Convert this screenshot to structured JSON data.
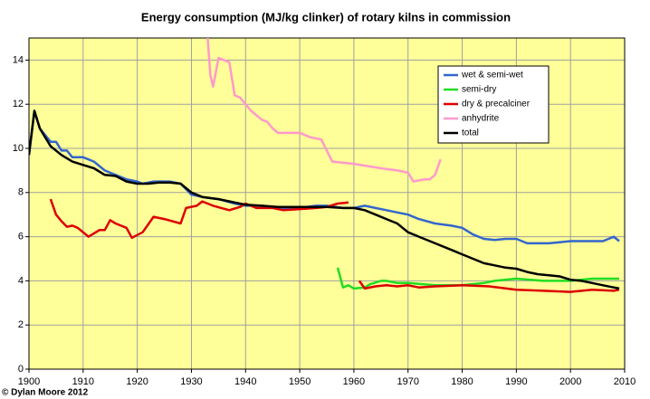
{
  "chart_data": {
    "type": "line",
    "title": "Energy consumption (MJ/kg clinker) of rotary kilns in commission",
    "credit": "© Dylan Moore 2012",
    "xlim": [
      1900,
      2010
    ],
    "xticks": [
      1900,
      1910,
      1920,
      1930,
      1940,
      1950,
      1960,
      1970,
      1980,
      1990,
      2000,
      2010
    ],
    "ylim": [
      0,
      15
    ],
    "yticks": [
      0,
      2,
      4,
      6,
      8,
      10,
      12,
      14
    ],
    "grid": true,
    "legend": "upper right",
    "plot_background": "#ffff99",
    "series": [
      {
        "name": "wet & semi-wet",
        "color": "#3366cc",
        "x": [
          1900,
          1901,
          1902,
          1904,
          1905,
          1906,
          1907,
          1908,
          1910,
          1912,
          1914,
          1916,
          1918,
          1920,
          1921,
          1923,
          1926,
          1928,
          1930,
          1932,
          1935,
          1938,
          1940,
          1943,
          1946,
          1950,
          1953,
          1955,
          1958,
          1960,
          1962,
          1964,
          1966,
          1968,
          1970,
          1972,
          1975,
          1978,
          1980,
          1982,
          1984,
          1986,
          1988,
          1990,
          1992,
          1994,
          1996,
          1998,
          2000,
          2002,
          2004,
          2006,
          2008,
          2009
        ],
        "values": [
          9.7,
          11.7,
          10.9,
          10.3,
          10.3,
          9.9,
          9.9,
          9.6,
          9.6,
          9.4,
          9.0,
          8.8,
          8.6,
          8.5,
          8.4,
          8.5,
          8.5,
          8.4,
          7.9,
          7.8,
          7.7,
          7.5,
          7.4,
          7.4,
          7.3,
          7.3,
          7.4,
          7.4,
          7.3,
          7.3,
          7.4,
          7.3,
          7.2,
          7.1,
          7.0,
          6.8,
          6.6,
          6.5,
          6.4,
          6.1,
          5.9,
          5.85,
          5.9,
          5.9,
          5.7,
          5.7,
          5.7,
          5.75,
          5.8,
          5.8,
          5.8,
          5.8,
          6.0,
          5.8
        ]
      },
      {
        "name": "semi-dry",
        "color": "#22dd22",
        "x": [
          1957,
          1958,
          1959,
          1960,
          1962,
          1963,
          1965,
          1966,
          1968,
          1970,
          1975,
          1980,
          1984,
          1986,
          1990,
          1995,
          2000,
          2004,
          2009
        ],
        "values": [
          4.6,
          3.7,
          3.8,
          3.65,
          3.7,
          3.85,
          4.0,
          4.0,
          3.9,
          3.9,
          3.8,
          3.8,
          3.9,
          4.0,
          4.1,
          4.0,
          4.0,
          4.1,
          4.1
        ]
      },
      {
        "name": "dry & precalciner",
        "color": "#dd0000",
        "x": [
          1904,
          1905,
          1906,
          1907,
          1908,
          1909,
          1911,
          1913,
          1914,
          1915,
          1916,
          1918,
          1919,
          1921,
          1923,
          1925,
          1928,
          1929,
          1931,
          1932,
          1934,
          1937,
          1939,
          1940,
          1942,
          1945,
          1947,
          1950,
          1953,
          1955,
          1957,
          1959,
          1960,
          1961,
          1962,
          1964,
          1966,
          1968,
          1970,
          1972,
          1975,
          1980,
          1985,
          1990,
          1995,
          2000,
          2004,
          2008,
          2009
        ],
        "values": [
          7.7,
          7.0,
          6.7,
          6.45,
          6.5,
          6.4,
          6.0,
          6.3,
          6.3,
          6.75,
          6.6,
          6.4,
          5.95,
          6.2,
          6.9,
          6.8,
          6.6,
          7.3,
          7.4,
          7.6,
          7.4,
          7.2,
          7.35,
          7.5,
          7.3,
          7.3,
          7.2,
          7.25,
          7.3,
          7.35,
          7.5,
          7.55,
          null,
          4.0,
          3.65,
          3.75,
          3.8,
          3.75,
          3.8,
          3.7,
          3.75,
          3.8,
          3.75,
          3.6,
          3.55,
          3.5,
          3.6,
          3.55,
          3.6
        ]
      },
      {
        "name": "anhydrite",
        "color": "#ff99cc",
        "x": [
          1933,
          1933.5,
          1934,
          1935,
          1937,
          1938,
          1939,
          1941,
          1943,
          1944,
          1945,
          1946,
          1950,
          1952,
          1954,
          1955,
          1956,
          1960,
          1965,
          1968,
          1970,
          1971,
          1973,
          1974,
          1975,
          1976
        ],
        "values": [
          15,
          13.3,
          12.8,
          14.1,
          13.9,
          12.4,
          12.3,
          11.7,
          11.3,
          11.2,
          10.9,
          10.7,
          10.7,
          10.5,
          10.4,
          9.9,
          9.4,
          9.3,
          9.1,
          9.0,
          8.9,
          8.5,
          8.6,
          8.6,
          8.8,
          9.5
        ]
      },
      {
        "name": "total",
        "color": "#000000",
        "x": [
          1900,
          1901,
          1902,
          1904,
          1906,
          1908,
          1910,
          1912,
          1914,
          1916,
          1918,
          1920,
          1922,
          1924,
          1926,
          1928,
          1930,
          1932,
          1935,
          1938,
          1940,
          1943,
          1946,
          1950,
          1955,
          1958,
          1960,
          1962,
          1964,
          1966,
          1968,
          1970,
          1972,
          1975,
          1978,
          1980,
          1982,
          1984,
          1986,
          1988,
          1990,
          1992,
          1994,
          1996,
          1998,
          2000,
          2002,
          2004,
          2006,
          2008,
          2009
        ],
        "values": [
          9.7,
          11.7,
          10.9,
          10.1,
          9.7,
          9.4,
          9.25,
          9.1,
          8.8,
          8.75,
          8.5,
          8.4,
          8.4,
          8.45,
          8.45,
          8.4,
          8.0,
          7.8,
          7.7,
          7.55,
          7.45,
          7.4,
          7.35,
          7.35,
          7.35,
          7.3,
          7.3,
          7.2,
          7.0,
          6.8,
          6.6,
          6.2,
          6.0,
          5.7,
          5.4,
          5.2,
          5.0,
          4.8,
          4.7,
          4.6,
          4.55,
          4.4,
          4.3,
          4.25,
          4.2,
          4.05,
          4.0,
          3.9,
          3.8,
          3.7,
          3.65
        ]
      }
    ]
  }
}
